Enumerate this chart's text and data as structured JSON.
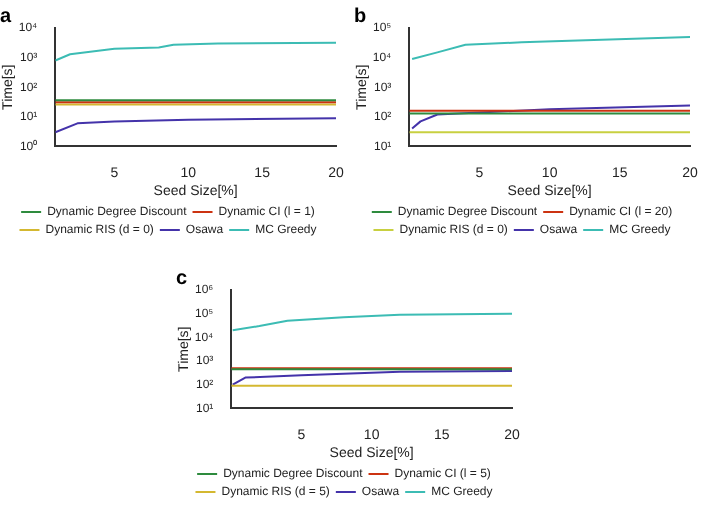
{
  "chart_data": [
    {
      "type": "line",
      "title": "a",
      "xlabel": "Seed Size[%]",
      "ylabel": "Time[s]",
      "log": "y",
      "grid": false,
      "legend": "bottom",
      "marker": "none",
      "xlim": [
        1,
        20
      ],
      "xticks": [
        5,
        10,
        15,
        20
      ],
      "ylim": [
        1,
        10000
      ],
      "yticks": [
        {
          "value": 1,
          "label": "10⁰"
        },
        {
          "value": 10,
          "label": "10¹"
        },
        {
          "value": 100,
          "label": "10²"
        },
        {
          "value": 1000,
          "label": "10³"
        },
        {
          "value": 10000,
          "label": "10⁴"
        }
      ],
      "series": [
        {
          "name": "Dynamic Degree Discount",
          "color": "#2e8b3e",
          "x": [
            1,
            20
          ],
          "values": [
            36,
            36
          ]
        },
        {
          "name": "Dynamic CI (l = 1)",
          "color": "#cc3311",
          "x": [
            1,
            20
          ],
          "values": [
            31,
            31
          ]
        },
        {
          "name": "Dynamic RIS (d = 0)",
          "color": "#d4b830",
          "x": [
            1,
            20
          ],
          "values": [
            26,
            26
          ]
        },
        {
          "name": "Osawa",
          "color": "#4433aa",
          "x": [
            1,
            2.5,
            5,
            10,
            20
          ],
          "values": [
            3,
            6,
            7,
            8,
            9
          ]
        },
        {
          "name": "MC Greedy",
          "color": "#3cbcb4",
          "x": [
            1,
            2,
            5,
            8,
            9,
            12,
            20
          ],
          "values": [
            800,
            1300,
            2000,
            2200,
            2700,
            3000,
            3200
          ]
        }
      ]
    },
    {
      "type": "line",
      "title": "b",
      "xlabel": "Seed Size[%]",
      "ylabel": "Time[s]",
      "log": "y",
      "grid": false,
      "legend": "bottom",
      "marker": "none",
      "xlim": [
        0,
        20
      ],
      "xticks": [
        5,
        10,
        15,
        20
      ],
      "ylim": [
        10,
        100000
      ],
      "yticks": [
        {
          "value": 10,
          "label": "10¹"
        },
        {
          "value": 100,
          "label": "10²"
        },
        {
          "value": 1000,
          "label": "10³"
        },
        {
          "value": 10000,
          "label": "10⁴"
        },
        {
          "value": 100000,
          "label": "10⁵"
        }
      ],
      "series": [
        {
          "name": "Dynamic Degree Discount",
          "color": "#2e8b3e",
          "x": [
            0,
            20
          ],
          "values": [
            130,
            130
          ]
        },
        {
          "name": "Dynamic CI (l = 20)",
          "color": "#cc3311",
          "x": [
            0,
            20
          ],
          "values": [
            160,
            160
          ]
        },
        {
          "name": "Dynamic RIS (d = 0)",
          "color": "#c8d040",
          "x": [
            0,
            20
          ],
          "values": [
            30,
            30
          ]
        },
        {
          "name": "Osawa",
          "color": "#4433aa",
          "x": [
            0.2,
            0.8,
            2,
            5,
            10,
            20
          ],
          "values": [
            40,
            70,
            120,
            140,
            180,
            240
          ]
        },
        {
          "name": "MC Greedy",
          "color": "#3cbcb4",
          "x": [
            0.2,
            2,
            4,
            8,
            20
          ],
          "values": [
            9000,
            15000,
            27000,
            33000,
            50000
          ]
        }
      ]
    },
    {
      "type": "line",
      "title": "c",
      "xlabel": "Seed Size[%]",
      "ylabel": "Time[s]",
      "log": "y",
      "grid": false,
      "legend": "bottom",
      "marker": "none",
      "xlim": [
        0,
        20
      ],
      "xticks": [
        5,
        10,
        15,
        20
      ],
      "ylim": [
        10,
        1000000
      ],
      "yticks": [
        {
          "value": 10,
          "label": "10¹"
        },
        {
          "value": 100,
          "label": "10²"
        },
        {
          "value": 1000,
          "label": "10³"
        },
        {
          "value": 10000,
          "label": "10⁴"
        },
        {
          "value": 100000,
          "label": "10⁵"
        },
        {
          "value": 1000000,
          "label": "10⁶"
        }
      ],
      "series": [
        {
          "name": "Dynamic Degree Discount",
          "color": "#2e8b3e",
          "x": [
            0,
            20
          ],
          "values": [
            450,
            450
          ]
        },
        {
          "name": "Dynamic CI (l = 5)",
          "color": "#cc3311",
          "x": [
            0,
            20
          ],
          "values": [
            500,
            500
          ]
        },
        {
          "name": "Dynamic RIS (d = 5)",
          "color": "#d4b830",
          "x": [
            0,
            20
          ],
          "values": [
            90,
            90
          ]
        },
        {
          "name": "Osawa",
          "color": "#4433aa",
          "x": [
            0.1,
            1,
            5,
            12,
            20
          ],
          "values": [
            100,
            200,
            250,
            350,
            380
          ]
        },
        {
          "name": "MC Greedy",
          "color": "#3cbcb4",
          "x": [
            0.1,
            2,
            4,
            8,
            12,
            20
          ],
          "values": [
            20000,
            30000,
            50000,
            70000,
            90000,
            100000
          ]
        }
      ]
    }
  ]
}
